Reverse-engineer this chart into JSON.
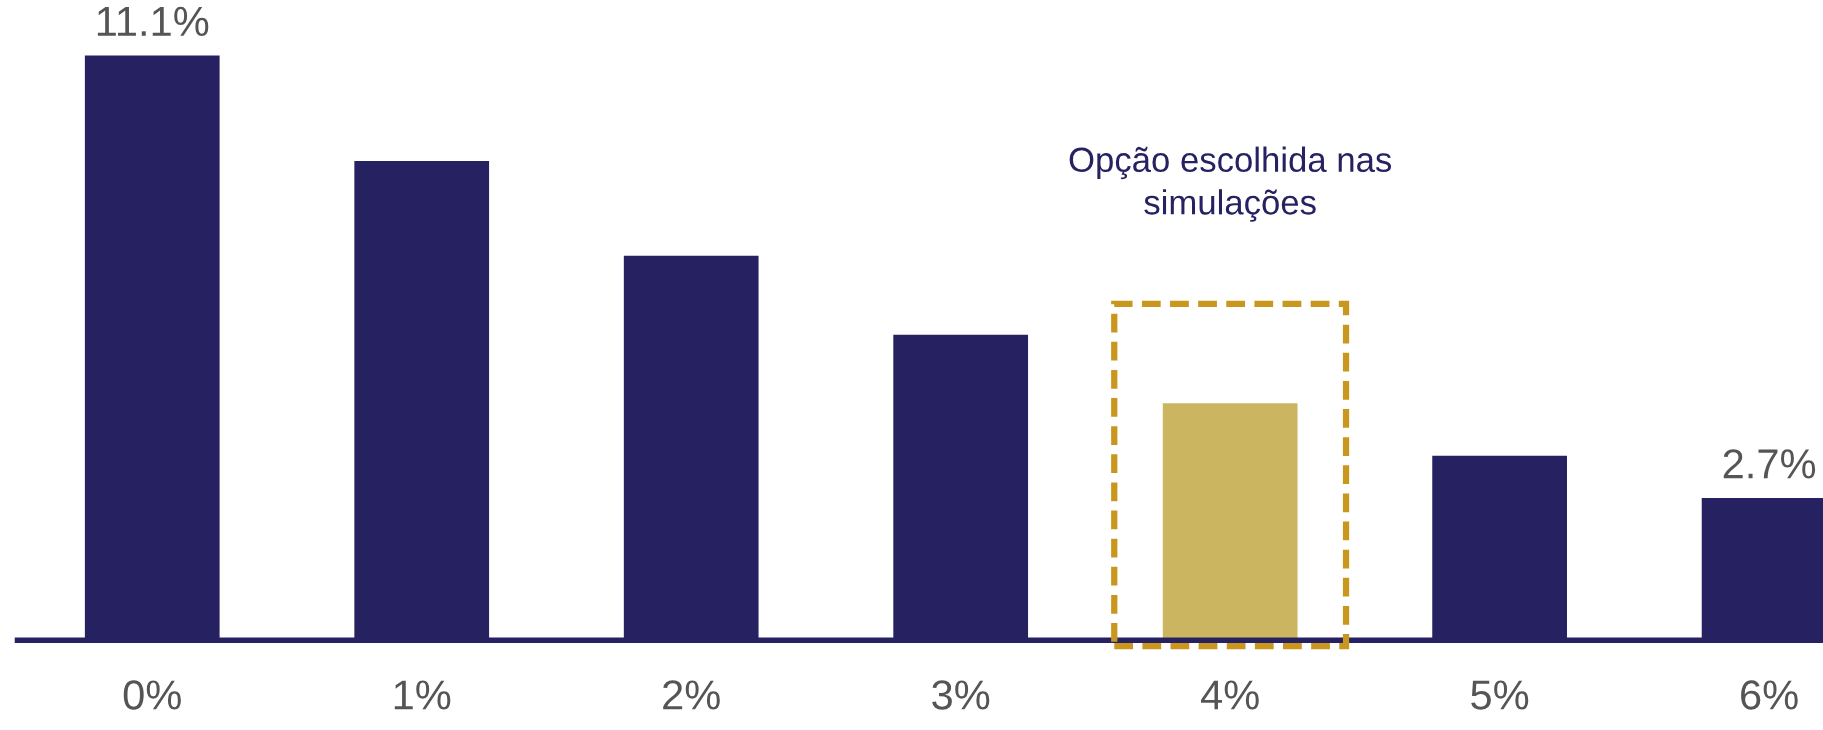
{
  "chart_data": {
    "type": "bar",
    "categories": [
      "0%",
      "1%",
      "2%",
      "3%",
      "4%",
      "5%",
      "6%"
    ],
    "values": [
      11.1,
      9.1,
      7.3,
      5.8,
      4.5,
      3.5,
      2.7
    ],
    "value_labels": [
      "11.1%",
      null,
      null,
      null,
      null,
      null,
      "2.7%"
    ],
    "colors": [
      "#262262",
      "#262262",
      "#262262",
      "#262262",
      "#cbb560",
      "#262262",
      "#262262"
    ],
    "annotations": [
      "Opção escolhida nas\nsimulações"
    ],
    "grid": false,
    "legend": false
  }
}
